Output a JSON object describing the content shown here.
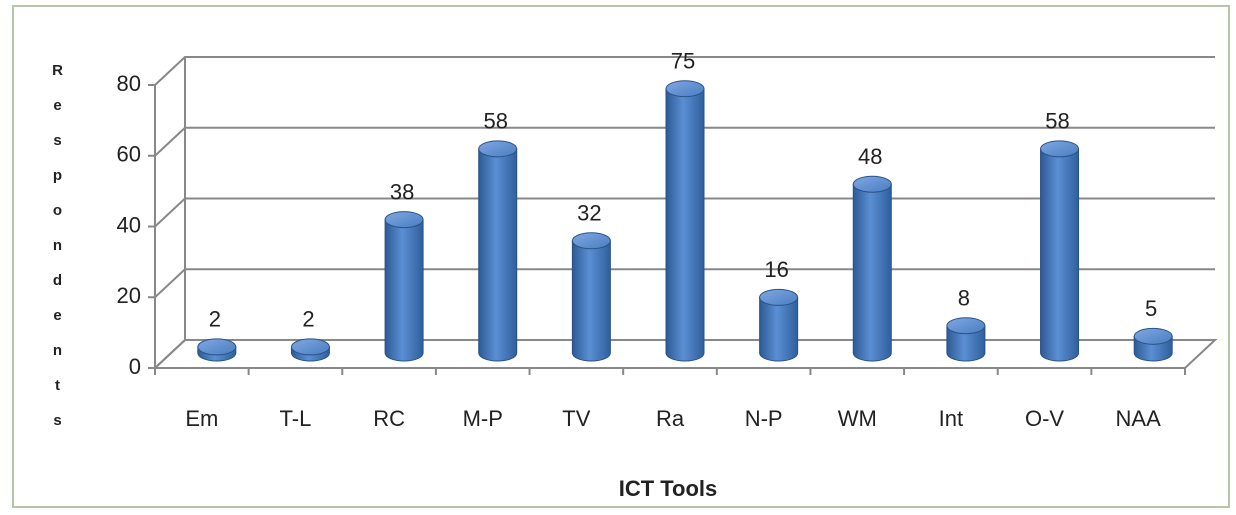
{
  "chart_data": {
    "type": "bar",
    "x_label": "ICT Tools",
    "y_label": "Respondents",
    "categories": [
      "Em",
      "T-L",
      "RC",
      "M-P",
      "TV",
      "Ra",
      "N-P",
      "WM",
      "Int",
      "O-V",
      "NAA"
    ],
    "values": [
      2,
      2,
      38,
      58,
      32,
      75,
      16,
      48,
      8,
      58,
      5
    ],
    "color": "#4f81bd",
    "ylim": [
      0,
      80
    ],
    "yticks": [
      0,
      20,
      40,
      60,
      80
    ],
    "grid": true
  }
}
